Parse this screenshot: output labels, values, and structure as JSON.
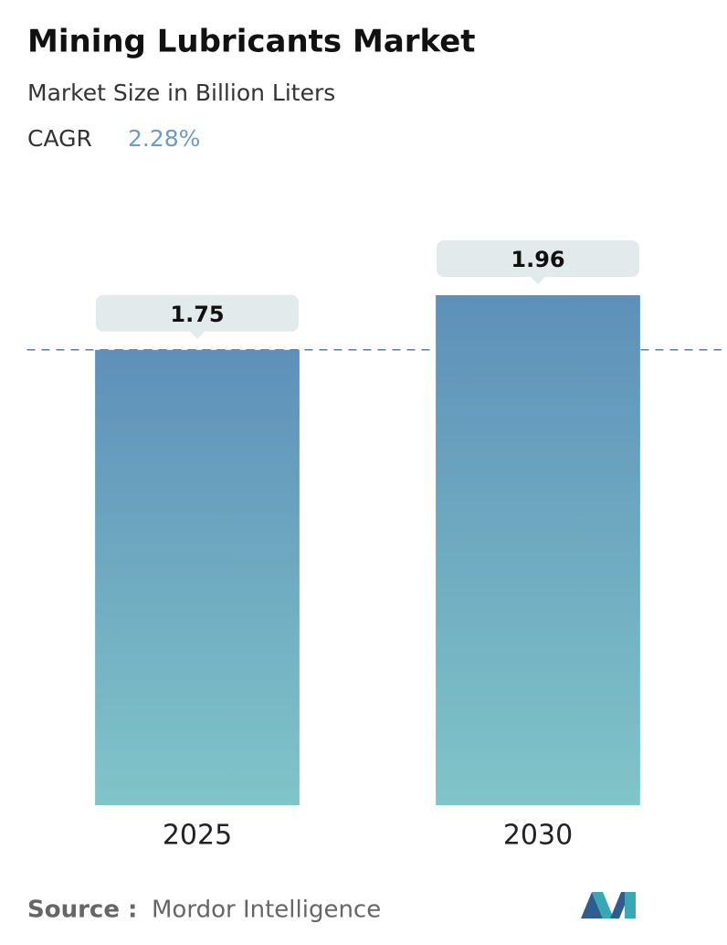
{
  "chart_data": {
    "type": "bar",
    "title": "Mining Lubricants Market",
    "subtitle": "Market Size in Billion Liters",
    "cagr_label": "CAGR",
    "cagr_value": "2.28%",
    "categories": [
      "2025",
      "2030"
    ],
    "values": [
      1.75,
      1.96
    ],
    "ylim": [
      0,
      1.96
    ],
    "reference_line": true,
    "source_label": "Source :",
    "source": "Mordor Intelligence"
  }
}
